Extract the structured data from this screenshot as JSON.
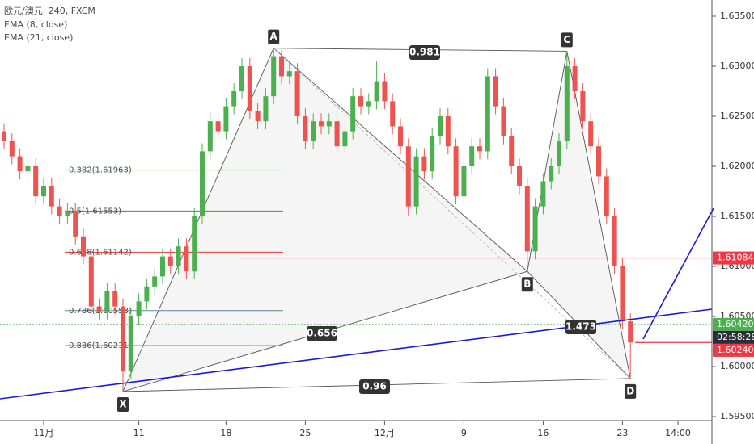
{
  "chart_data": {
    "type": "candlestick",
    "title": "欧元/澳元, 240, FXCM",
    "indicators": [
      "EMA (8, close)",
      "EMA (21, close)"
    ],
    "up_color": "#4caf50",
    "down_color": "#ef5350",
    "open": [
      1.6235,
      1.6225,
      1.621,
      1.6195,
      1.62,
      1.617,
      1.618,
      1.616,
      1.615,
      1.6155,
      1.613,
      1.611,
      1.606,
      1.6055,
      1.6075,
      1.606,
      1.5995,
      1.605,
      1.6065,
      1.608,
      1.609,
      1.611,
      1.61,
      1.612,
      1.6095,
      1.615,
      1.6215,
      1.6245,
      1.6235,
      1.626,
      1.6275,
      1.63,
      1.6255,
      1.6245,
      1.627,
      1.631,
      1.629,
      1.6295,
      1.625,
      1.6225,
      1.6245,
      1.624,
      1.6245,
      1.622,
      1.6235,
      1.627,
      1.626,
      1.6265,
      1.6285,
      1.6265,
      1.624,
      1.622,
      1.616,
      1.621,
      1.6195,
      1.623,
      1.625,
      1.622,
      1.617,
      1.62,
      1.622,
      1.6215,
      1.629,
      1.626,
      1.623,
      1.62,
      1.618,
      1.6115,
      1.616,
      1.6185,
      1.62,
      1.6225,
      1.63,
      1.6275,
      1.6245,
      1.622,
      1.619,
      1.615,
      1.61,
      1.6045
    ],
    "high": [
      1.6243,
      1.6233,
      1.6218,
      1.6208,
      1.6208,
      1.6188,
      1.6188,
      1.6168,
      1.6163,
      1.6163,
      1.6138,
      1.6118,
      1.6068,
      1.6083,
      1.6083,
      1.6068,
      1.6058,
      1.6073,
      1.6088,
      1.6098,
      1.6118,
      1.6118,
      1.6128,
      1.6128,
      1.6158,
      1.6223,
      1.6253,
      1.6253,
      1.6268,
      1.6283,
      1.6308,
      1.6308,
      1.6263,
      1.6278,
      1.6318,
      1.6316,
      1.6303,
      1.6303,
      1.6258,
      1.6253,
      1.6253,
      1.6253,
      1.6253,
      1.6243,
      1.6278,
      1.6278,
      1.6273,
      1.6305,
      1.6293,
      1.6273,
      1.6248,
      1.6228,
      1.6218,
      1.6218,
      1.6238,
      1.6258,
      1.6258,
      1.6228,
      1.6208,
      1.6228,
      1.6228,
      1.6298,
      1.6298,
      1.6268,
      1.6238,
      1.6208,
      1.6188,
      1.6168,
      1.6193,
      1.6208,
      1.6233,
      1.6315,
      1.6308,
      1.6283,
      1.6253,
      1.6228,
      1.6198,
      1.6158,
      1.6108,
      1.6053
    ],
    "low": [
      1.6217,
      1.6202,
      1.6187,
      1.6187,
      1.6162,
      1.6162,
      1.6152,
      1.6142,
      1.6142,
      1.6122,
      1.6102,
      1.6052,
      1.6047,
      1.6047,
      1.6052,
      1.5975,
      1.5987,
      1.6042,
      1.6057,
      1.6072,
      1.6082,
      1.6092,
      1.6092,
      1.6087,
      1.6087,
      1.6142,
      1.6207,
      1.6227,
      1.6227,
      1.6252,
      1.6267,
      1.6247,
      1.6237,
      1.6237,
      1.6262,
      1.6282,
      1.6282,
      1.6242,
      1.6217,
      1.6217,
      1.6232,
      1.6232,
      1.6212,
      1.6212,
      1.6227,
      1.6252,
      1.6252,
      1.6257,
      1.6257,
      1.6232,
      1.6212,
      1.615,
      1.6152,
      1.6187,
      1.6187,
      1.6222,
      1.6212,
      1.6162,
      1.6162,
      1.6192,
      1.6207,
      1.6207,
      1.6252,
      1.6222,
      1.6192,
      1.6172,
      1.6095,
      1.6107,
      1.6152,
      1.6177,
      1.6192,
      1.6217,
      1.6267,
      1.6237,
      1.6212,
      1.6182,
      1.6142,
      1.6092,
      1.6037,
      1.5988
    ],
    "close": [
      1.6225,
      1.621,
      1.6195,
      1.62,
      1.617,
      1.618,
      1.616,
      1.615,
      1.6155,
      1.613,
      1.611,
      1.606,
      1.6055,
      1.6075,
      1.606,
      1.5995,
      1.605,
      1.6065,
      1.608,
      1.609,
      1.611,
      1.61,
      1.612,
      1.6095,
      1.615,
      1.6215,
      1.6245,
      1.6235,
      1.626,
      1.6275,
      1.63,
      1.6255,
      1.6245,
      1.627,
      1.631,
      1.629,
      1.6295,
      1.625,
      1.6225,
      1.6245,
      1.624,
      1.6245,
      1.622,
      1.6235,
      1.627,
      1.626,
      1.6265,
      1.6285,
      1.6265,
      1.624,
      1.622,
      1.616,
      1.621,
      1.6195,
      1.623,
      1.625,
      1.622,
      1.617,
      1.62,
      1.622,
      1.6215,
      1.629,
      1.626,
      1.623,
      1.62,
      1.618,
      1.6115,
      1.616,
      1.6185,
      1.62,
      1.6225,
      1.63,
      1.6275,
      1.6245,
      1.622,
      1.619,
      1.615,
      1.61,
      1.6045,
      1.6024
    ],
    "xticks": [
      {
        "value": 5,
        "label": "11月"
      },
      {
        "value": 17,
        "label": "11"
      },
      {
        "value": 28,
        "label": "18"
      },
      {
        "value": 38,
        "label": "25"
      },
      {
        "value": 48,
        "label": "12月"
      },
      {
        "value": 58,
        "label": "9"
      },
      {
        "value": 68,
        "label": "16"
      },
      {
        "value": 78,
        "label": "23"
      },
      {
        "value": 85,
        "label": "14:00"
      }
    ],
    "ylim": [
      1.595,
      1.635
    ],
    "yticks": [
      {
        "value": 1.595,
        "label": "1.59500"
      },
      {
        "value": 1.6,
        "label": "1.60000"
      },
      {
        "value": 1.605,
        "label": "1.60500"
      },
      {
        "value": 1.61,
        "label": "1.61000"
      },
      {
        "value": 1.615,
        "label": "1.61500"
      },
      {
        "value": 1.62,
        "label": "1.62000"
      },
      {
        "value": 1.625,
        "label": "1.62500"
      },
      {
        "value": 1.63,
        "label": "1.63000"
      },
      {
        "value": 1.635,
        "label": "1.63500"
      }
    ],
    "fib_levels": [
      {
        "value": 1.61963,
        "label": "0.382(1.61963)",
        "color": "#4caf50"
      },
      {
        "value": 1.61553,
        "label": "0.5(1.61553)",
        "color": "#2e9e2e"
      },
      {
        "value": 1.61142,
        "label": "0.618(1.61142)",
        "color": "#e53935"
      },
      {
        "value": 1.60558,
        "label": "0.786(1.60558)",
        "color": "#5b8a9a"
      },
      {
        "value": 1.60211,
        "label": "0.886(1.60211)",
        "color": "#9e9e9e"
      }
    ],
    "pattern": {
      "points": [
        {
          "name": "X",
          "index": 15,
          "price": 1.5975
        },
        {
          "name": "A",
          "index": 34,
          "price": 1.6318
        },
        {
          "name": "B",
          "index": 66,
          "price": 1.6095
        },
        {
          "name": "C",
          "index": 71,
          "price": 1.6315
        },
        {
          "name": "D",
          "index": 79,
          "price": 1.5988
        }
      ],
      "ratios": [
        0.981,
        1.473,
        0.656,
        0.96
      ]
    },
    "price_labels": [
      {
        "value": 1.61084,
        "label": "1.61084",
        "color": "#f23645"
      },
      {
        "value": 1.6042,
        "label": "1.60420",
        "color": "#4caf50"
      },
      {
        "value": 1.6024,
        "label": "1.60240",
        "color": "#f23645"
      }
    ],
    "countdown": "02:58:28"
  }
}
